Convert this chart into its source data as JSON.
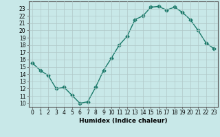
{
  "x": [
    0,
    1,
    2,
    3,
    4,
    5,
    6,
    7,
    8,
    9,
    10,
    11,
    12,
    13,
    14,
    15,
    16,
    17,
    18,
    19,
    20,
    21,
    22,
    23
  ],
  "y": [
    15.5,
    14.5,
    13.8,
    12.0,
    12.2,
    11.1,
    10.0,
    10.2,
    12.2,
    14.5,
    16.2,
    18.0,
    19.2,
    21.5,
    22.0,
    23.2,
    23.3,
    22.8,
    23.2,
    22.5,
    21.5,
    20.0,
    18.3,
    17.5
  ],
  "line_color": "#1a7a6a",
  "bg_color": "#c8e8e8",
  "grid_color": "#b0c8c8",
  "xlabel": "Humidex (Indice chaleur)",
  "xlim": [
    -0.5,
    23.5
  ],
  "ylim": [
    9.5,
    24.0
  ],
  "yticks": [
    10,
    11,
    12,
    13,
    14,
    15,
    16,
    17,
    18,
    19,
    20,
    21,
    22,
    23
  ],
  "xticks": [
    0,
    1,
    2,
    3,
    4,
    5,
    6,
    7,
    8,
    9,
    10,
    11,
    12,
    13,
    14,
    15,
    16,
    17,
    18,
    19,
    20,
    21,
    22,
    23
  ],
  "marker_size": 2.5,
  "line_width": 1.0,
  "tick_fontsize": 5.5,
  "xlabel_fontsize": 6.5
}
